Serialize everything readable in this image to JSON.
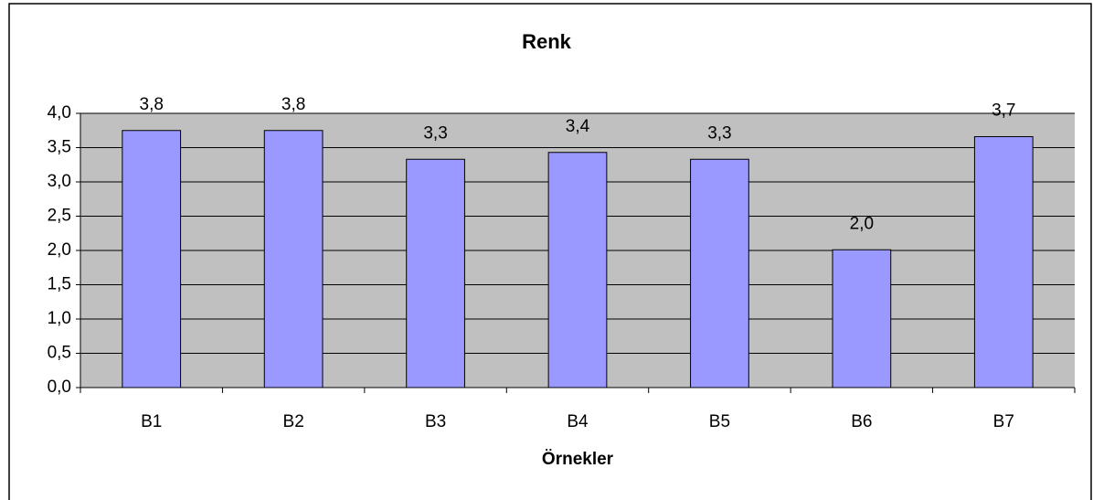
{
  "chart_data": {
    "type": "bar",
    "title": "Renk",
    "x_label": "Örnekler",
    "categories": [
      "B1",
      "B2",
      "B3",
      "B4",
      "B5",
      "B6",
      "B7"
    ],
    "values": [
      3.75,
      3.75,
      3.33,
      3.43,
      3.33,
      2.01,
      3.66
    ],
    "value_labels": [
      "3,8",
      "3,8",
      "3,3",
      "3,4",
      "3,3",
      "2,0",
      "3,7"
    ],
    "color": "#9999ff",
    "ylim": [
      0,
      4
    ],
    "yticks": [
      {
        "value": 0,
        "label": "0,0"
      },
      {
        "value": 0.5,
        "label": "0,5"
      },
      {
        "value": 1,
        "label": "1,0"
      },
      {
        "value": 1.5,
        "label": "1,5"
      },
      {
        "value": 2,
        "label": "2,0"
      },
      {
        "value": 2.5,
        "label": "2,5"
      },
      {
        "value": 3,
        "label": "3,0"
      },
      {
        "value": 3.5,
        "label": "3,5"
      },
      {
        "value": 4,
        "label": "4,0"
      }
    ],
    "grid": true
  }
}
